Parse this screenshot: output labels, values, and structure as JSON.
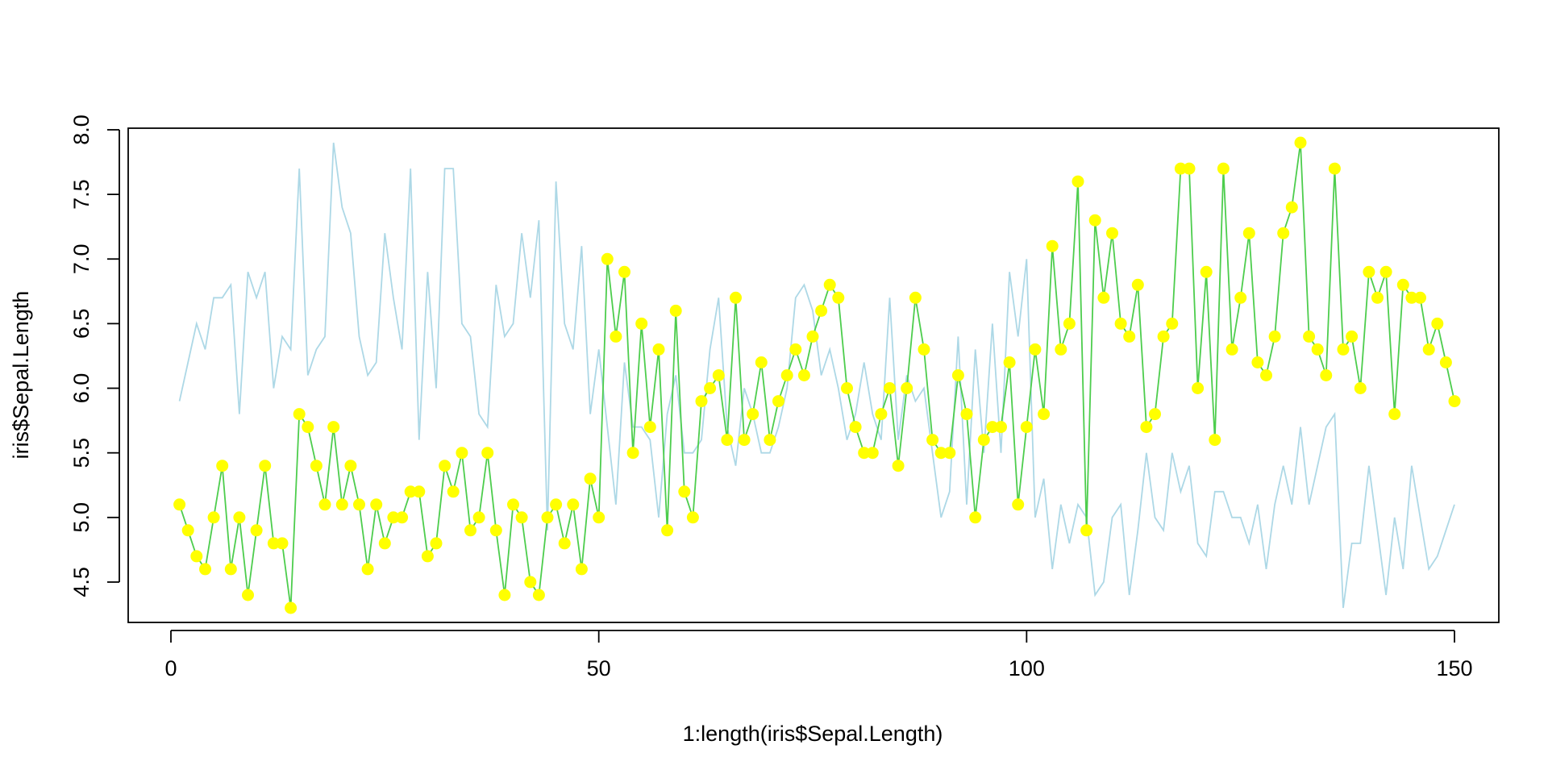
{
  "chart_data": {
    "type": "line",
    "title": "",
    "xlabel": "1:length(iris$Sepal.Length)",
    "ylabel": "iris$Sepal.Length",
    "xlim": [
      0,
      150
    ],
    "ylim": [
      4.3,
      7.9
    ],
    "x_ticks": [
      "0",
      "50",
      "100",
      "150"
    ],
    "y_ticks": [
      "4.5",
      "5.0",
      "5.5",
      "6.0",
      "6.5",
      "7.0",
      "7.5",
      "8.0"
    ],
    "grid": false,
    "legend": "none",
    "series": [
      {
        "type": "line",
        "color": "#add8e6",
        "x_start": 1,
        "values": [
          5.9,
          6.2,
          6.5,
          6.3,
          6.7,
          6.7,
          6.8,
          5.8,
          6.9,
          6.7,
          6.9,
          6.0,
          6.4,
          6.3,
          7.7,
          6.1,
          6.3,
          6.4,
          7.9,
          7.4,
          7.2,
          6.4,
          6.1,
          6.2,
          7.2,
          6.7,
          6.3,
          7.7,
          5.6,
          6.9,
          6.0,
          7.7,
          7.7,
          6.5,
          6.4,
          5.8,
          5.7,
          6.8,
          6.4,
          6.5,
          7.2,
          6.7,
          7.3,
          4.9,
          7.6,
          6.5,
          6.3,
          7.1,
          5.8,
          6.3,
          5.7,
          5.1,
          6.2,
          5.7,
          5.7,
          5.6,
          5.0,
          5.8,
          6.1,
          5.5,
          5.5,
          5.6,
          6.3,
          6.7,
          5.7,
          5.4,
          6.0,
          5.8,
          5.5,
          5.5,
          5.7,
          6.0,
          6.7,
          6.8,
          6.6,
          6.1,
          6.3,
          6.0,
          5.6,
          5.8,
          6.2,
          5.8,
          5.6,
          6.7,
          5.6,
          6.1,
          5.9,
          6.0,
          5.5,
          5.0,
          5.2,
          6.4,
          5.1,
          6.3,
          5.5,
          6.5,
          5.5,
          6.9,
          6.4,
          7.0,
          5.0,
          5.3,
          4.6,
          5.1,
          4.8,
          5.1,
          5.0,
          4.4,
          4.5,
          5.0,
          5.1,
          4.4,
          4.9,
          5.5,
          5.0,
          4.9,
          5.5,
          5.2,
          5.4,
          4.8,
          4.7,
          5.2,
          5.2,
          5.0,
          5.0,
          4.8,
          5.1,
          4.6,
          5.1,
          5.4,
          5.1,
          5.7,
          5.1,
          5.4,
          5.7,
          5.8,
          4.3,
          4.8,
          4.8,
          5.4,
          4.9,
          4.4,
          5.0,
          4.6,
          5.4,
          5.0,
          4.6,
          4.7,
          4.9,
          5.1
        ]
      },
      {
        "type": "line-points",
        "line_color": "#4dcd4d",
        "point_color": "#ffff00",
        "x_start": 1,
        "values": [
          5.1,
          4.9,
          4.7,
          4.6,
          5.0,
          5.4,
          4.6,
          5.0,
          4.4,
          4.9,
          5.4,
          4.8,
          4.8,
          4.3,
          5.8,
          5.7,
          5.4,
          5.1,
          5.7,
          5.1,
          5.4,
          5.1,
          4.6,
          5.1,
          4.8,
          5.0,
          5.0,
          5.2,
          5.2,
          4.7,
          4.8,
          5.4,
          5.2,
          5.5,
          4.9,
          5.0,
          5.5,
          4.9,
          4.4,
          5.1,
          5.0,
          4.5,
          4.4,
          5.0,
          5.1,
          4.8,
          5.1,
          4.6,
          5.3,
          5.0,
          7.0,
          6.4,
          6.9,
          5.5,
          6.5,
          5.7,
          6.3,
          4.9,
          6.6,
          5.2,
          5.0,
          5.9,
          6.0,
          6.1,
          5.6,
          6.7,
          5.6,
          5.8,
          6.2,
          5.6,
          5.9,
          6.1,
          6.3,
          6.1,
          6.4,
          6.6,
          6.8,
          6.7,
          6.0,
          5.7,
          5.5,
          5.5,
          5.8,
          6.0,
          5.4,
          6.0,
          6.7,
          6.3,
          5.6,
          5.5,
          5.5,
          6.1,
          5.8,
          5.0,
          5.6,
          5.7,
          5.7,
          6.2,
          5.1,
          5.7,
          6.3,
          5.8,
          7.1,
          6.3,
          6.5,
          7.6,
          4.9,
          7.3,
          6.7,
          7.2,
          6.5,
          6.4,
          6.8,
          5.7,
          5.8,
          6.4,
          6.5,
          7.7,
          7.7,
          6.0,
          6.9,
          5.6,
          7.7,
          6.3,
          6.7,
          7.2,
          6.2,
          6.1,
          6.4,
          7.2,
          7.4,
          7.9,
          6.4,
          6.3,
          6.1,
          7.7,
          6.3,
          6.4,
          6.0,
          6.9,
          6.7,
          6.9,
          5.8,
          6.8,
          6.7,
          6.7,
          6.3,
          6.5,
          6.2,
          5.9
        ]
      }
    ]
  }
}
